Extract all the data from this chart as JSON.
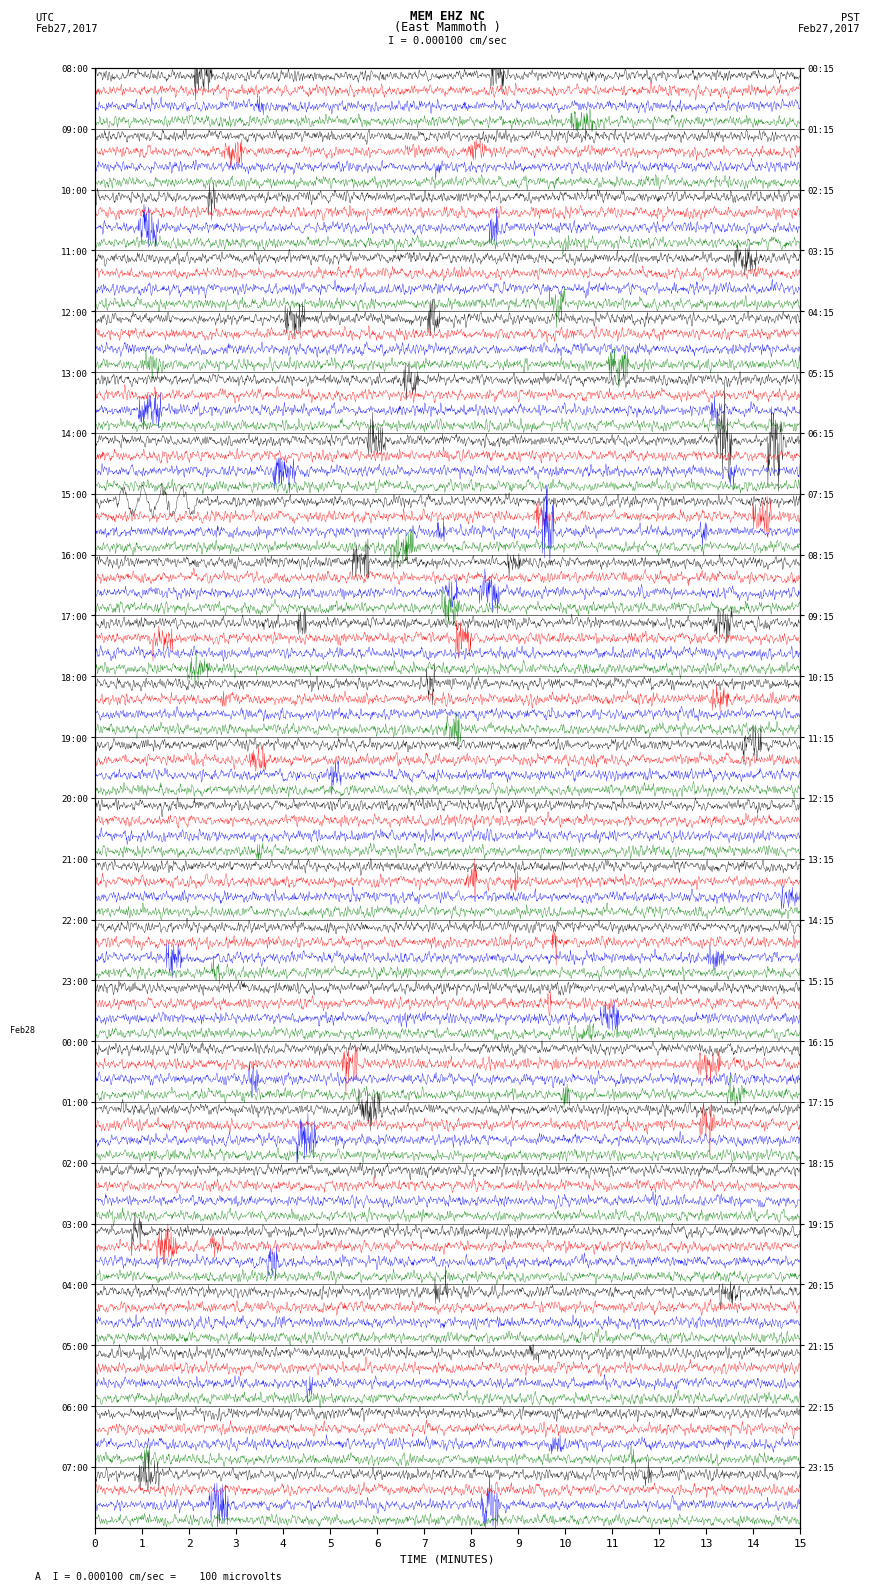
{
  "title_line1": "MEM EHZ NC",
  "title_line2": "(East Mammoth )",
  "scale_label": "I = 0.000100 cm/sec",
  "bottom_label": "A  I = 0.000100 cm/sec =    100 microvolts",
  "utc_label": "UTC\nFeb27,2017",
  "pst_label": "PST\nFeb27,2017",
  "xlabel": "TIME (MINUTES)",
  "left_times": [
    "08:00",
    "09:00",
    "10:00",
    "11:00",
    "12:00",
    "13:00",
    "14:00",
    "15:00",
    "16:00",
    "17:00",
    "18:00",
    "19:00",
    "20:00",
    "21:00",
    "22:00",
    "23:00",
    "Feb28\n00:00",
    "01:00",
    "02:00",
    "03:00",
    "04:00",
    "05:00",
    "06:00",
    "07:00"
  ],
  "right_times": [
    "00:15",
    "01:15",
    "02:15",
    "03:15",
    "04:15",
    "05:15",
    "06:15",
    "07:15",
    "08:15",
    "09:15",
    "10:15",
    "11:15",
    "12:15",
    "13:15",
    "14:15",
    "15:15",
    "16:15",
    "17:15",
    "18:15",
    "19:15",
    "20:15",
    "21:15",
    "22:15",
    "23:15"
  ],
  "num_rows": 24,
  "traces_per_row": 4,
  "colors": [
    "black",
    "red",
    "blue",
    "green"
  ],
  "bg_color": "white",
  "fig_width": 8.5,
  "fig_height": 16.13,
  "dpi": 100
}
